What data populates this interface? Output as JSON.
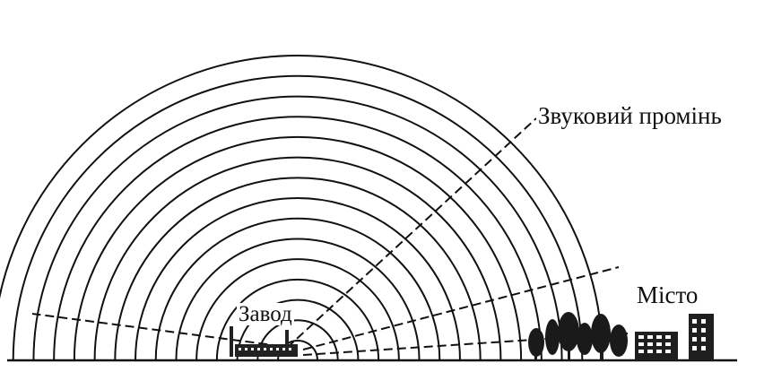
{
  "labels": {
    "sound_ray": "Звуковий промінь",
    "factory": "Завод",
    "city": "Місто"
  },
  "diagram": {
    "wavefronts": 15,
    "rays": 4
  },
  "colors": {
    "ink": "#111111",
    "background": "#ffffff"
  }
}
